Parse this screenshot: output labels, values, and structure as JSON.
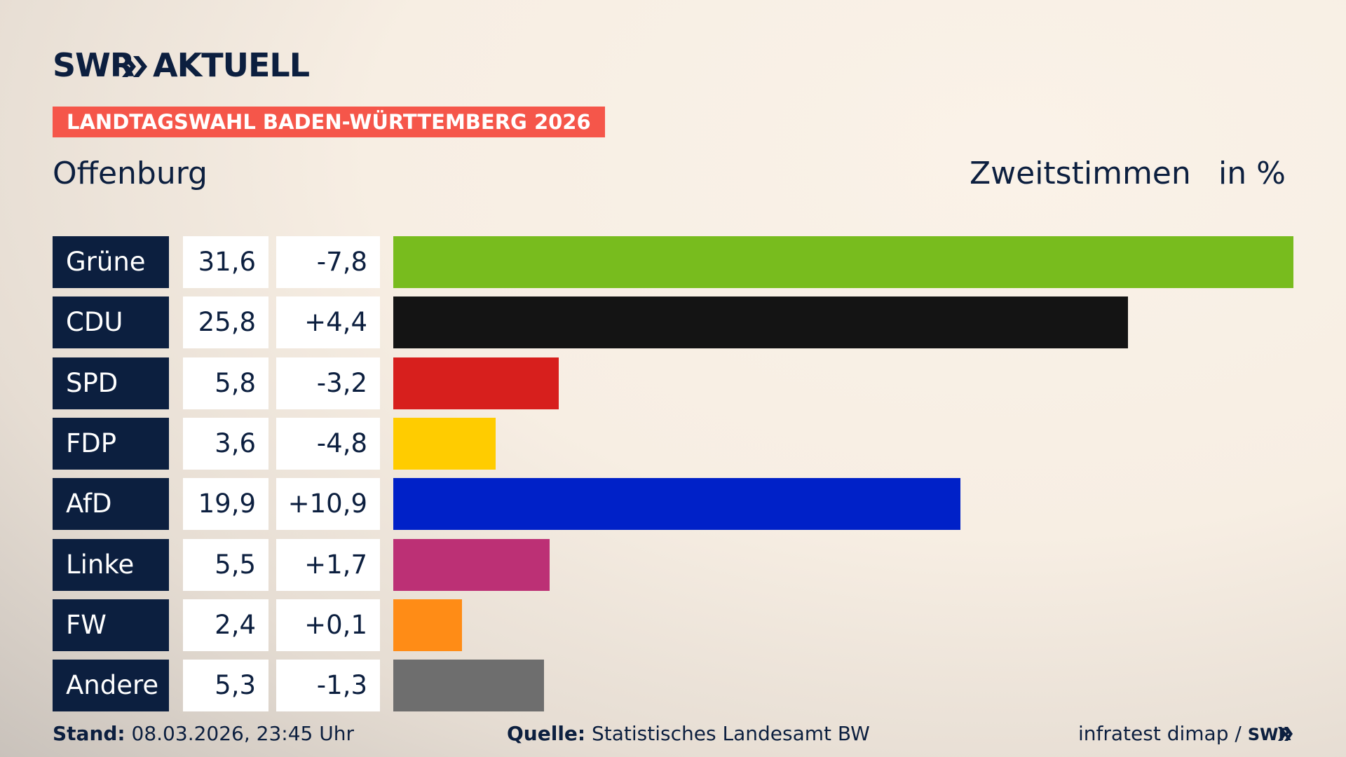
{
  "header": {
    "logo_left": "SWR",
    "logo_right": "AKTUELL",
    "banner": "LANDTAGSWAHL BADEN-WÜRTTEMBERG 2026"
  },
  "chart_data": {
    "type": "bar",
    "title": "Offenburg",
    "subtitle": "Zweitstimmen",
    "unit": "in %",
    "categories": [
      "Grüne",
      "CDU",
      "SPD",
      "FDP",
      "AfD",
      "Linke",
      "FW",
      "Andere"
    ],
    "values": [
      31.6,
      25.8,
      5.8,
      3.6,
      19.9,
      5.5,
      2.4,
      5.3
    ],
    "value_labels": [
      "31,6",
      "25,8",
      "5,8",
      "3,6",
      "19,9",
      "5,5",
      "2,4",
      "5,3"
    ],
    "changes": [
      -7.8,
      4.4,
      -3.2,
      -4.8,
      10.9,
      1.7,
      0.1,
      -1.3
    ],
    "change_labels": [
      "-7,8",
      "+4,4",
      "-3,2",
      "-4,8",
      "+10,9",
      "+1,7",
      "+0,1",
      "-1,3"
    ],
    "colors": [
      "#78bc1e",
      "#141414",
      "#d71f1d",
      "#ffcc00",
      "#0021c8",
      "#bc3075",
      "#ff8c16",
      "#6e6e6e"
    ]
  },
  "footer": {
    "stand_label": "Stand:",
    "stand": "08.03.2026, 23:45 Uhr",
    "source_label": "Quelle:",
    "source": "Statistisches Landesamt BW",
    "credit": "infratest dimap /",
    "credit_logo": "SWR"
  }
}
